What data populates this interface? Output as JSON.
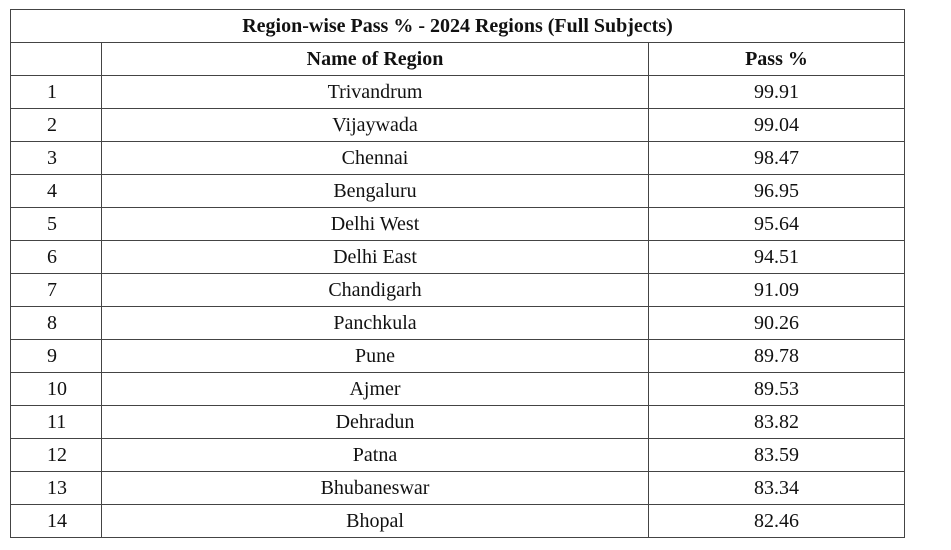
{
  "table": {
    "title": "Region-wise Pass % - 2024 Regions (Full Subjects)",
    "headers": [
      "Name of Region",
      "Pass %"
    ],
    "rows": [
      [
        1,
        "Trivandrum",
        99.91
      ],
      [
        2,
        "Vijaywada",
        99.04
      ],
      [
        3,
        "Chennai",
        98.47
      ],
      [
        4,
        "Bengaluru",
        96.95
      ],
      [
        5,
        "Delhi West",
        95.64
      ],
      [
        6,
        "Delhi East",
        94.51
      ],
      [
        7,
        "Chandigarh",
        91.09
      ],
      [
        8,
        "Panchkula",
        90.26
      ],
      [
        9,
        "Pune",
        89.78
      ],
      [
        10,
        "Ajmer",
        89.53
      ],
      [
        11,
        "Dehradun",
        83.82
      ],
      [
        12,
        "Patna",
        83.59
      ],
      [
        13,
        "Bhubaneswar",
        83.34
      ],
      [
        14,
        "Bhopal",
        82.46
      ]
    ]
  }
}
